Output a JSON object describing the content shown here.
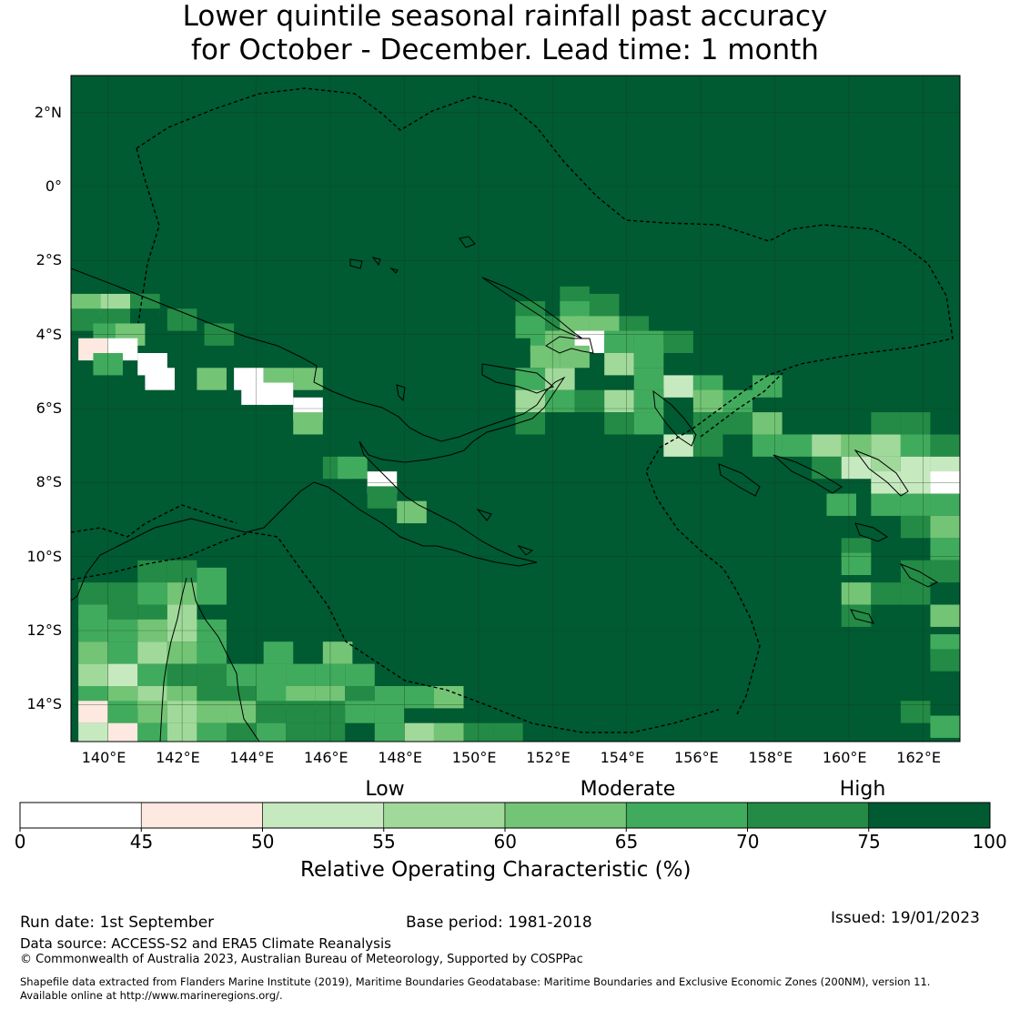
{
  "title": {
    "line1": "Lower quintile seasonal rainfall past accuracy",
    "line2": "for October - December. Lead time: 1 month"
  },
  "map": {
    "lon_range": [
      139,
      163
    ],
    "lat_range": [
      -15,
      3
    ],
    "lon_ticks": [
      {
        "value": 140,
        "label": "140°E"
      },
      {
        "value": 142,
        "label": "142°E"
      },
      {
        "value": 144,
        "label": "144°E"
      },
      {
        "value": 146,
        "label": "146°E"
      },
      {
        "value": 148,
        "label": "148°E"
      },
      {
        "value": 150,
        "label": "150°E"
      },
      {
        "value": 152,
        "label": "152°E"
      },
      {
        "value": 154,
        "label": "154°E"
      },
      {
        "value": 156,
        "label": "156°E"
      },
      {
        "value": 158,
        "label": "158°E"
      },
      {
        "value": 160,
        "label": "160°E"
      },
      {
        "value": 162,
        "label": "162°E"
      }
    ],
    "lat_ticks": [
      {
        "value": 2,
        "label": "2°N"
      },
      {
        "value": 0,
        "label": "0°"
      },
      {
        "value": -2,
        "label": "2°S"
      },
      {
        "value": -4,
        "label": "4°S"
      },
      {
        "value": -6,
        "label": "6°S"
      },
      {
        "value": -8,
        "label": "8°S"
      },
      {
        "value": -10,
        "label": "10°S"
      },
      {
        "value": -12,
        "label": "12°S"
      },
      {
        "value": -14,
        "label": "14°S"
      }
    ],
    "default_class": 7,
    "cells": [
      {
        "lon": 139.4,
        "lat": -3.2,
        "c": 4
      },
      {
        "lon": 139.4,
        "lat": -3.6,
        "c": 6
      },
      {
        "lon": 140.2,
        "lat": -3.2,
        "c": 3
      },
      {
        "lon": 140.2,
        "lat": -3.6,
        "c": 6
      },
      {
        "lon": 141.0,
        "lat": -3.2,
        "c": 6
      },
      {
        "lon": 141.0,
        "lat": -3.6,
        "c": 7
      },
      {
        "lon": 142.0,
        "lat": -3.6,
        "c": 6
      },
      {
        "lon": 140.0,
        "lat": -4.0,
        "c": 5
      },
      {
        "lon": 140.6,
        "lat": -4.0,
        "c": 4
      },
      {
        "lon": 143.0,
        "lat": -4.0,
        "c": 6
      },
      {
        "lon": 139.6,
        "lat": -4.4,
        "c": 1
      },
      {
        "lon": 140.4,
        "lat": -4.4,
        "c": 0
      },
      {
        "lon": 140.0,
        "lat": -4.8,
        "c": 5
      },
      {
        "lon": 141.2,
        "lat": -4.8,
        "c": 0
      },
      {
        "lon": 141.4,
        "lat": -5.2,
        "c": 0
      },
      {
        "lon": 142.8,
        "lat": -5.2,
        "c": 4
      },
      {
        "lon": 143.8,
        "lat": -5.2,
        "c": 0
      },
      {
        "lon": 144.6,
        "lat": -5.2,
        "c": 4
      },
      {
        "lon": 145.4,
        "lat": -5.2,
        "c": 4
      },
      {
        "lon": 144.0,
        "lat": -5.6,
        "c": 0
      },
      {
        "lon": 144.6,
        "lat": -5.6,
        "c": 0
      },
      {
        "lon": 145.4,
        "lat": -6.0,
        "c": 0
      },
      {
        "lon": 145.4,
        "lat": -6.4,
        "c": 4
      },
      {
        "lon": 146.2,
        "lat": -7.6,
        "c": 6
      },
      {
        "lon": 146.6,
        "lat": -7.6,
        "c": 5
      },
      {
        "lon": 147.4,
        "lat": -8.0,
        "c": 0
      },
      {
        "lon": 147.4,
        "lat": -8.4,
        "c": 6
      },
      {
        "lon": 148.2,
        "lat": -8.8,
        "c": 4
      },
      {
        "lon": 151.4,
        "lat": -3.4,
        "c": 6
      },
      {
        "lon": 152.6,
        "lat": -3.0,
        "c": 6
      },
      {
        "lon": 152.6,
        "lat": -3.4,
        "c": 5
      },
      {
        "lon": 153.4,
        "lat": -3.2,
        "c": 6
      },
      {
        "lon": 151.4,
        "lat": -3.8,
        "c": 5
      },
      {
        "lon": 152.2,
        "lat": -3.8,
        "c": 6
      },
      {
        "lon": 152.6,
        "lat": -3.8,
        "c": 4
      },
      {
        "lon": 153.4,
        "lat": -3.8,
        "c": 4
      },
      {
        "lon": 154.2,
        "lat": -3.8,
        "c": 6
      },
      {
        "lon": 151.8,
        "lat": -4.2,
        "c": 5
      },
      {
        "lon": 152.2,
        "lat": -4.2,
        "c": 4
      },
      {
        "lon": 152.6,
        "lat": -4.2,
        "c": 4
      },
      {
        "lon": 153.0,
        "lat": -4.2,
        "c": 0
      },
      {
        "lon": 153.8,
        "lat": -4.2,
        "c": 5
      },
      {
        "lon": 154.6,
        "lat": -4.2,
        "c": 5
      },
      {
        "lon": 155.4,
        "lat": -4.2,
        "c": 6
      },
      {
        "lon": 151.8,
        "lat": -4.6,
        "c": 4
      },
      {
        "lon": 152.6,
        "lat": -4.6,
        "c": 4
      },
      {
        "lon": 153.8,
        "lat": -4.8,
        "c": 3
      },
      {
        "lon": 154.6,
        "lat": -4.6,
        "c": 5
      },
      {
        "lon": 151.4,
        "lat": -5.2,
        "c": 5
      },
      {
        "lon": 152.2,
        "lat": -5.2,
        "c": 3
      },
      {
        "lon": 154.6,
        "lat": -5.2,
        "c": 5
      },
      {
        "lon": 155.4,
        "lat": -5.4,
        "c": 2
      },
      {
        "lon": 156.2,
        "lat": -5.4,
        "c": 5
      },
      {
        "lon": 157.8,
        "lat": -5.4,
        "c": 5
      },
      {
        "lon": 151.4,
        "lat": -5.8,
        "c": 3
      },
      {
        "lon": 152.2,
        "lat": -5.8,
        "c": 5
      },
      {
        "lon": 153.0,
        "lat": -5.8,
        "c": 6
      },
      {
        "lon": 153.8,
        "lat": -5.8,
        "c": 3
      },
      {
        "lon": 154.6,
        "lat": -5.8,
        "c": 5
      },
      {
        "lon": 156.2,
        "lat": -5.8,
        "c": 4
      },
      {
        "lon": 157.0,
        "lat": -5.8,
        "c": 5
      },
      {
        "lon": 151.4,
        "lat": -6.4,
        "c": 6
      },
      {
        "lon": 153.8,
        "lat": -6.4,
        "c": 6
      },
      {
        "lon": 154.6,
        "lat": -6.4,
        "c": 5
      },
      {
        "lon": 156.2,
        "lat": -6.4,
        "c": 6
      },
      {
        "lon": 157.0,
        "lat": -6.4,
        "c": 6
      },
      {
        "lon": 157.8,
        "lat": -6.4,
        "c": 4
      },
      {
        "lon": 155.4,
        "lat": -7.0,
        "c": 2
      },
      {
        "lon": 156.2,
        "lat": -7.0,
        "c": 6
      },
      {
        "lon": 157.8,
        "lat": -7.0,
        "c": 5
      },
      {
        "lon": 158.6,
        "lat": -7.0,
        "c": 5
      },
      {
        "lon": 159.4,
        "lat": -7.0,
        "c": 3
      },
      {
        "lon": 160.2,
        "lat": -7.0,
        "c": 4
      },
      {
        "lon": 161.0,
        "lat": -7.0,
        "c": 3
      },
      {
        "lon": 161.8,
        "lat": -7.0,
        "c": 5
      },
      {
        "lon": 162.6,
        "lat": -7.0,
        "c": 6
      },
      {
        "lon": 161.0,
        "lat": -6.4,
        "c": 6
      },
      {
        "lon": 161.8,
        "lat": -6.4,
        "c": 6
      },
      {
        "lon": 159.4,
        "lat": -7.6,
        "c": 6
      },
      {
        "lon": 160.2,
        "lat": -7.6,
        "c": 2
      },
      {
        "lon": 161.0,
        "lat": -7.6,
        "c": 3
      },
      {
        "lon": 161.8,
        "lat": -7.6,
        "c": 2
      },
      {
        "lon": 162.6,
        "lat": -7.6,
        "c": 2
      },
      {
        "lon": 161.0,
        "lat": -8.0,
        "c": 2
      },
      {
        "lon": 161.8,
        "lat": -8.0,
        "c": 2
      },
      {
        "lon": 162.6,
        "lat": -8.0,
        "c": 0
      },
      {
        "lon": 159.8,
        "lat": -8.6,
        "c": 5
      },
      {
        "lon": 161.0,
        "lat": -8.6,
        "c": 5
      },
      {
        "lon": 161.8,
        "lat": -8.6,
        "c": 5
      },
      {
        "lon": 162.6,
        "lat": -8.6,
        "c": 5
      },
      {
        "lon": 161.8,
        "lat": -9.2,
        "c": 6
      },
      {
        "lon": 162.6,
        "lat": -9.2,
        "c": 4
      },
      {
        "lon": 160.2,
        "lat": -9.8,
        "c": 6
      },
      {
        "lon": 162.6,
        "lat": -9.8,
        "c": 5
      },
      {
        "lon": 160.2,
        "lat": -10.2,
        "c": 5
      },
      {
        "lon": 161.8,
        "lat": -10.4,
        "c": 6
      },
      {
        "lon": 162.6,
        "lat": -10.4,
        "c": 6
      },
      {
        "lon": 160.2,
        "lat": -11.0,
        "c": 4
      },
      {
        "lon": 161.0,
        "lat": -11.0,
        "c": 6
      },
      {
        "lon": 161.8,
        "lat": -11.0,
        "c": 6
      },
      {
        "lon": 160.2,
        "lat": -11.6,
        "c": 6
      },
      {
        "lon": 162.6,
        "lat": -11.6,
        "c": 4
      },
      {
        "lon": 162.6,
        "lat": -12.4,
        "c": 5
      },
      {
        "lon": 162.6,
        "lat": -12.8,
        "c": 6
      },
      {
        "lon": 161.8,
        "lat": -14.2,
        "c": 6
      },
      {
        "lon": 162.6,
        "lat": -14.6,
        "c": 5
      },
      {
        "lon": 139.6,
        "lat": -11.0,
        "c": 6
      },
      {
        "lon": 140.4,
        "lat": -11.0,
        "c": 6
      },
      {
        "lon": 141.2,
        "lat": -10.4,
        "c": 6
      },
      {
        "lon": 142.0,
        "lat": -10.4,
        "c": 6
      },
      {
        "lon": 142.8,
        "lat": -10.6,
        "c": 5
      },
      {
        "lon": 141.2,
        "lat": -11.0,
        "c": 5
      },
      {
        "lon": 142.0,
        "lat": -11.0,
        "c": 4
      },
      {
        "lon": 142.8,
        "lat": -11.0,
        "c": 5
      },
      {
        "lon": 139.6,
        "lat": -11.6,
        "c": 5
      },
      {
        "lon": 140.4,
        "lat": -11.6,
        "c": 6
      },
      {
        "lon": 141.2,
        "lat": -11.6,
        "c": 6
      },
      {
        "lon": 142.0,
        "lat": -11.6,
        "c": 3
      },
      {
        "lon": 139.6,
        "lat": -12.0,
        "c": 5
      },
      {
        "lon": 140.4,
        "lat": -12.0,
        "c": 5
      },
      {
        "lon": 141.2,
        "lat": -12.0,
        "c": 4
      },
      {
        "lon": 142.0,
        "lat": -12.0,
        "c": 3
      },
      {
        "lon": 142.8,
        "lat": -12.0,
        "c": 5
      },
      {
        "lon": 139.6,
        "lat": -12.6,
        "c": 4
      },
      {
        "lon": 140.4,
        "lat": -12.6,
        "c": 5
      },
      {
        "lon": 141.2,
        "lat": -12.6,
        "c": 3
      },
      {
        "lon": 142.0,
        "lat": -12.6,
        "c": 4
      },
      {
        "lon": 142.8,
        "lat": -12.6,
        "c": 5
      },
      {
        "lon": 144.6,
        "lat": -12.6,
        "c": 5
      },
      {
        "lon": 146.2,
        "lat": -12.6,
        "c": 4
      },
      {
        "lon": 139.6,
        "lat": -13.2,
        "c": 3
      },
      {
        "lon": 140.4,
        "lat": -13.2,
        "c": 2
      },
      {
        "lon": 141.2,
        "lat": -13.2,
        "c": 5
      },
      {
        "lon": 142.0,
        "lat": -13.2,
        "c": 6
      },
      {
        "lon": 142.8,
        "lat": -13.2,
        "c": 6
      },
      {
        "lon": 143.6,
        "lat": -13.2,
        "c": 5
      },
      {
        "lon": 144.4,
        "lat": -13.2,
        "c": 5
      },
      {
        "lon": 145.2,
        "lat": -13.2,
        "c": 5
      },
      {
        "lon": 146.0,
        "lat": -13.2,
        "c": 5
      },
      {
        "lon": 146.8,
        "lat": -13.2,
        "c": 5
      },
      {
        "lon": 139.6,
        "lat": -13.8,
        "c": 5
      },
      {
        "lon": 140.4,
        "lat": -13.8,
        "c": 4
      },
      {
        "lon": 141.2,
        "lat": -13.8,
        "c": 3
      },
      {
        "lon": 142.0,
        "lat": -13.8,
        "c": 4
      },
      {
        "lon": 142.8,
        "lat": -13.8,
        "c": 6
      },
      {
        "lon": 143.6,
        "lat": -13.8,
        "c": 6
      },
      {
        "lon": 144.4,
        "lat": -13.8,
        "c": 5
      },
      {
        "lon": 145.2,
        "lat": -13.8,
        "c": 4
      },
      {
        "lon": 146.0,
        "lat": -13.8,
        "c": 4
      },
      {
        "lon": 146.8,
        "lat": -13.8,
        "c": 6
      },
      {
        "lon": 147.6,
        "lat": -13.8,
        "c": 5
      },
      {
        "lon": 148.4,
        "lat": -13.8,
        "c": 5
      },
      {
        "lon": 149.2,
        "lat": -13.8,
        "c": 4
      },
      {
        "lon": 139.6,
        "lat": -14.2,
        "c": 1
      },
      {
        "lon": 140.4,
        "lat": -14.2,
        "c": 5
      },
      {
        "lon": 141.2,
        "lat": -14.2,
        "c": 4
      },
      {
        "lon": 142.0,
        "lat": -14.2,
        "c": 3
      },
      {
        "lon": 142.8,
        "lat": -14.2,
        "c": 4
      },
      {
        "lon": 143.6,
        "lat": -14.2,
        "c": 4
      },
      {
        "lon": 144.4,
        "lat": -14.2,
        "c": 6
      },
      {
        "lon": 145.2,
        "lat": -14.2,
        "c": 6
      },
      {
        "lon": 146.0,
        "lat": -14.2,
        "c": 6
      },
      {
        "lon": 146.8,
        "lat": -14.2,
        "c": 5
      },
      {
        "lon": 147.6,
        "lat": -14.2,
        "c": 5
      },
      {
        "lon": 139.6,
        "lat": -14.8,
        "c": 2
      },
      {
        "lon": 140.4,
        "lat": -14.8,
        "c": 1
      },
      {
        "lon": 141.2,
        "lat": -14.8,
        "c": 5
      },
      {
        "lon": 142.0,
        "lat": -14.8,
        "c": 3
      },
      {
        "lon": 142.8,
        "lat": -14.8,
        "c": 5
      },
      {
        "lon": 143.6,
        "lat": -14.8,
        "c": 6
      },
      {
        "lon": 144.4,
        "lat": -14.8,
        "c": 5
      },
      {
        "lon": 145.2,
        "lat": -14.8,
        "c": 6
      },
      {
        "lon": 146.0,
        "lat": -14.8,
        "c": 6
      },
      {
        "lon": 147.6,
        "lat": -14.8,
        "c": 5
      },
      {
        "lon": 148.4,
        "lat": -14.8,
        "c": 3
      },
      {
        "lon": 149.2,
        "lat": -14.8,
        "c": 4
      },
      {
        "lon": 150.0,
        "lat": -14.8,
        "c": 6
      },
      {
        "lon": 150.8,
        "lat": -14.8,
        "c": 6
      }
    ]
  },
  "colorbar": {
    "categories": [
      "Low",
      "Moderate",
      "High"
    ],
    "bins": [
      {
        "from": 0,
        "to": 45,
        "color": "#ffffff"
      },
      {
        "from": 45,
        "to": 50,
        "color": "#fde9df"
      },
      {
        "from": 50,
        "to": 55,
        "color": "#c7e9c0"
      },
      {
        "from": 55,
        "to": 60,
        "color": "#a1d99b"
      },
      {
        "from": 60,
        "to": 65,
        "color": "#74c476"
      },
      {
        "from": 65,
        "to": 70,
        "color": "#41ab5d"
      },
      {
        "from": 70,
        "to": 75,
        "color": "#238b45"
      },
      {
        "from": 75,
        "to": 100,
        "color": "#005a32"
      }
    ],
    "tick_labels": [
      "0",
      "45",
      "50",
      "55",
      "60",
      "65",
      "70",
      "75",
      "100"
    ],
    "label": "Relative Operating Characteristic (%)"
  },
  "footer": {
    "run_date": "Run date: 1st September",
    "base_period": "Base period: 1981-2018",
    "issued": "Issued: 19/01/2023",
    "data_source": "Data source: ACCESS-S2 and ERA5 Climate Reanalysis",
    "copyright": "© Commonwealth of Australia 2023, Australian Bureau of Meteorology, Supported by COSPPac",
    "shapefile_line1": "Shapefile data extracted from Flanders Marine Institute (2019), Maritime Boundaries Geodatabase: Maritime Boundaries and Exclusive Economic Zones (200NM), version 11.",
    "shapefile_line2": "Available online at http://www.marineregions.org/."
  }
}
